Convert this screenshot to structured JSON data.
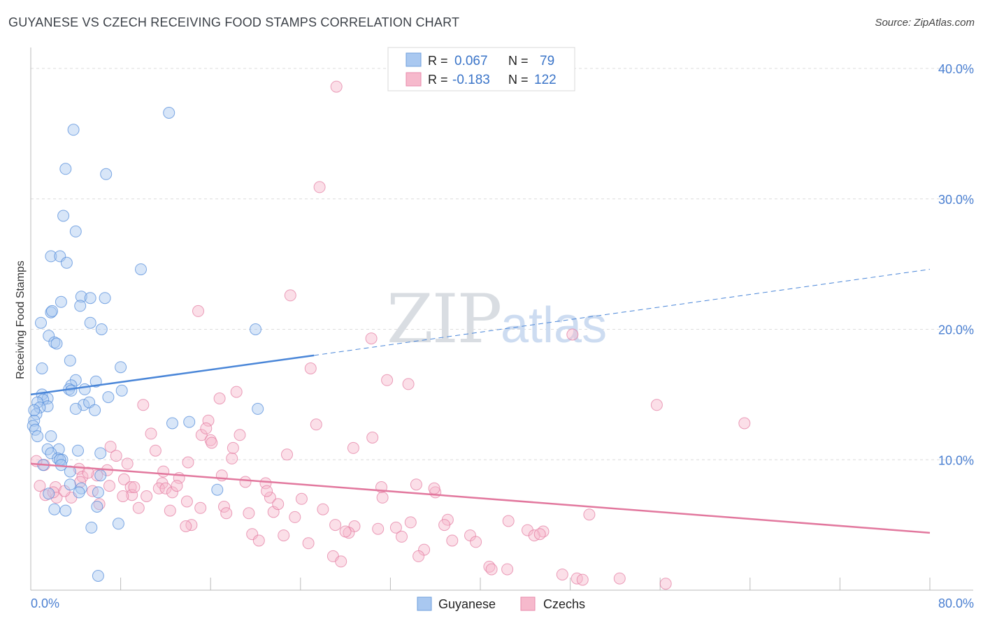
{
  "header": {
    "title": "GUYANESE VS CZECH RECEIVING FOOD STAMPS CORRELATION CHART",
    "source": "Source: ZipAtlas.com"
  },
  "watermark": {
    "zip": "ZIP",
    "atlas": "atlas"
  },
  "legend_box": {
    "rows": [
      {
        "r_label": "R =",
        "r_value": "0.067",
        "n_label": "N =",
        "n_value": "79",
        "color": "#a9c8f0"
      },
      {
        "r_label": "R =",
        "r_value": "-0.183",
        "n_label": "N =",
        "n_value": "122",
        "color": "#f6b9cc"
      }
    ]
  },
  "bottom_legend": {
    "items": [
      {
        "label": "Guyanese",
        "color": "#a9c8f0"
      },
      {
        "label": "Czechs",
        "color": "#f6b9cc"
      }
    ]
  },
  "chart_data": {
    "type": "scatter",
    "title": "GUYANESE VS CZECH RECEIVING FOOD STAMPS CORRELATION CHART",
    "xlabel": "",
    "ylabel": "Receiving Food Stamps",
    "xlim": [
      0,
      80
    ],
    "ylim": [
      0,
      40
    ],
    "x_tick_labels": [
      "0.0%",
      "80.0%"
    ],
    "y_ticks": [
      10,
      20,
      30,
      40
    ],
    "y_tick_labels": [
      "10.0%",
      "20.0%",
      "30.0%",
      "40.0%"
    ],
    "grid": true,
    "legend_position": "bottom",
    "series": [
      {
        "name": "Guyanese",
        "color": "#4a86d8",
        "fill": "#a9c8f0",
        "trend": {
          "x_start": 0,
          "y_start": 15.0,
          "x_solid_end": 25.2,
          "y_solid_end": 18.0,
          "x_end": 80,
          "y_end": 24.6
        },
        "points": [
          [
            12.3,
            36.6
          ],
          [
            3.8,
            35.3
          ],
          [
            3.1,
            32.3
          ],
          [
            6.7,
            31.9
          ],
          [
            2.9,
            28.7
          ],
          [
            4.0,
            27.5
          ],
          [
            1.8,
            25.6
          ],
          [
            2.6,
            25.6
          ],
          [
            3.2,
            25.1
          ],
          [
            9.8,
            24.6
          ],
          [
            4.5,
            22.5
          ],
          [
            5.3,
            22.4
          ],
          [
            6.6,
            22.4
          ],
          [
            2.7,
            22.1
          ],
          [
            4.4,
            21.8
          ],
          [
            1.8,
            21.3
          ],
          [
            1.9,
            21.4
          ],
          [
            0.9,
            20.5
          ],
          [
            5.3,
            20.5
          ],
          [
            6.3,
            20.0
          ],
          [
            20.0,
            20.0
          ],
          [
            1.6,
            19.5
          ],
          [
            2.1,
            19.0
          ],
          [
            2.3,
            18.9
          ],
          [
            3.5,
            17.6
          ],
          [
            1.0,
            17.0
          ],
          [
            8.0,
            17.1
          ],
          [
            4.0,
            16.1
          ],
          [
            5.8,
            16.0
          ],
          [
            3.6,
            15.7
          ],
          [
            3.4,
            15.4
          ],
          [
            3.6,
            15.3
          ],
          [
            4.8,
            15.4
          ],
          [
            8.1,
            15.3
          ],
          [
            1.0,
            15.0
          ],
          [
            1.5,
            14.7
          ],
          [
            1.1,
            14.6
          ],
          [
            6.9,
            14.8
          ],
          [
            0.6,
            14.4
          ],
          [
            4.7,
            14.2
          ],
          [
            5.2,
            14.4
          ],
          [
            1.5,
            14.1
          ],
          [
            0.8,
            14.0
          ],
          [
            4.0,
            13.9
          ],
          [
            5.7,
            13.8
          ],
          [
            20.2,
            13.9
          ],
          [
            0.5,
            13.5
          ],
          [
            0.3,
            13.0
          ],
          [
            12.6,
            12.8
          ],
          [
            14.1,
            12.9
          ],
          [
            0.2,
            12.6
          ],
          [
            0.4,
            12.3
          ],
          [
            0.6,
            11.8
          ],
          [
            1.8,
            11.8
          ],
          [
            1.5,
            10.8
          ],
          [
            2.5,
            10.8
          ],
          [
            4.2,
            10.7
          ],
          [
            1.8,
            10.5
          ],
          [
            6.2,
            10.5
          ],
          [
            2.4,
            10.1
          ],
          [
            2.8,
            10.0
          ],
          [
            2.6,
            10.0
          ],
          [
            1.1,
            9.6
          ],
          [
            2.7,
            9.6
          ],
          [
            3.5,
            9.1
          ],
          [
            6.2,
            8.8
          ],
          [
            3.5,
            8.1
          ],
          [
            4.5,
            7.8
          ],
          [
            16.6,
            7.7
          ],
          [
            1.6,
            7.4
          ],
          [
            4.3,
            7.5
          ],
          [
            6.0,
            7.5
          ],
          [
            5.9,
            6.4
          ],
          [
            2.1,
            6.2
          ],
          [
            3.1,
            6.1
          ],
          [
            7.8,
            5.1
          ],
          [
            5.4,
            4.8
          ],
          [
            6.0,
            1.1
          ],
          [
            0.3,
            13.8
          ]
        ]
      },
      {
        "name": "Czechs",
        "color": "#e2789e",
        "fill": "#f6b9cc",
        "trend": {
          "x_start": 0,
          "y_start": 9.7,
          "x_end": 80,
          "y_end": 4.4
        },
        "points": [
          [
            27.2,
            38.6
          ],
          [
            25.7,
            30.9
          ],
          [
            23.1,
            22.6
          ],
          [
            14.9,
            21.4
          ],
          [
            48.2,
            19.6
          ],
          [
            30.3,
            19.3
          ],
          [
            24.9,
            17.0
          ],
          [
            31.7,
            16.1
          ],
          [
            33.6,
            15.8
          ],
          [
            18.3,
            15.2
          ],
          [
            16.8,
            14.7
          ],
          [
            10.0,
            14.2
          ],
          [
            55.7,
            14.2
          ],
          [
            15.8,
            13.0
          ],
          [
            63.5,
            12.8
          ],
          [
            25.4,
            12.7
          ],
          [
            10.7,
            12.0
          ],
          [
            15.2,
            11.9
          ],
          [
            18.6,
            11.9
          ],
          [
            16.0,
            11.5
          ],
          [
            30.4,
            11.7
          ],
          [
            16.1,
            11.3
          ],
          [
            28.7,
            10.9
          ],
          [
            7.1,
            11.0
          ],
          [
            11.1,
            10.7
          ],
          [
            7.6,
            10.3
          ],
          [
            22.8,
            10.4
          ],
          [
            17.9,
            10.1
          ],
          [
            8.6,
            9.7
          ],
          [
            14.0,
            9.8
          ],
          [
            4.3,
            9.3
          ],
          [
            5.9,
            8.8
          ],
          [
            17.0,
            8.8
          ],
          [
            8.3,
            8.5
          ],
          [
            4.6,
            8.7
          ],
          [
            13.2,
            8.6
          ],
          [
            11.7,
            8.2
          ],
          [
            19.1,
            8.3
          ],
          [
            20.9,
            8.2
          ],
          [
            34.3,
            8.1
          ],
          [
            0.8,
            8.0
          ],
          [
            2.2,
            7.9
          ],
          [
            31.2,
            7.9
          ],
          [
            8.9,
            7.9
          ],
          [
            7.0,
            8.0
          ],
          [
            11.4,
            7.8
          ],
          [
            12.0,
            7.8
          ],
          [
            5.5,
            7.6
          ],
          [
            36.0,
            7.5
          ],
          [
            12.6,
            7.5
          ],
          [
            3.6,
            7.1
          ],
          [
            1.3,
            7.3
          ],
          [
            2.3,
            7.1
          ],
          [
            9.0,
            7.3
          ],
          [
            10.3,
            7.2
          ],
          [
            8.2,
            7.2
          ],
          [
            31.3,
            7.1
          ],
          [
            21.3,
            7.1
          ],
          [
            24.1,
            7.0
          ],
          [
            13.9,
            6.8
          ],
          [
            6.1,
            6.6
          ],
          [
            9.6,
            6.3
          ],
          [
            17.2,
            6.4
          ],
          [
            15.1,
            6.3
          ],
          [
            12.4,
            6.1
          ],
          [
            21.6,
            6.0
          ],
          [
            17.4,
            5.9
          ],
          [
            19.4,
            5.9
          ],
          [
            23.5,
            5.6
          ],
          [
            49.7,
            5.8
          ],
          [
            37.1,
            5.4
          ],
          [
            42.5,
            5.3
          ],
          [
            14.3,
            5.0
          ],
          [
            13.8,
            4.9
          ],
          [
            27.1,
            5.0
          ],
          [
            33.8,
            5.2
          ],
          [
            28.8,
            4.9
          ],
          [
            30.9,
            4.7
          ],
          [
            28.3,
            4.4
          ],
          [
            32.5,
            4.8
          ],
          [
            44.2,
            4.6
          ],
          [
            45.6,
            4.5
          ],
          [
            44.8,
            4.2
          ],
          [
            39.1,
            4.2
          ],
          [
            19.7,
            4.3
          ],
          [
            22.5,
            4.2
          ],
          [
            33.0,
            4.1
          ],
          [
            45.3,
            4.3
          ],
          [
            37.5,
            3.8
          ],
          [
            39.6,
            3.7
          ],
          [
            20.3,
            3.8
          ],
          [
            24.7,
            3.6
          ],
          [
            35.0,
            3.1
          ],
          [
            26.9,
            2.6
          ],
          [
            34.5,
            2.6
          ],
          [
            27.6,
            2.2
          ],
          [
            40.8,
            1.8
          ],
          [
            41.0,
            1.6
          ],
          [
            42.4,
            1.6
          ],
          [
            47.3,
            1.2
          ],
          [
            48.6,
            0.9
          ],
          [
            49.1,
            0.8
          ],
          [
            52.4,
            0.9
          ],
          [
            56.5,
            0.5
          ],
          [
            4.4,
            8.3
          ],
          [
            3.0,
            7.6
          ],
          [
            6.8,
            9.2
          ],
          [
            9.2,
            7.9
          ],
          [
            1.2,
            9.6
          ],
          [
            2.0,
            7.5
          ],
          [
            13.0,
            8.0
          ],
          [
            18.0,
            10.9
          ],
          [
            15.6,
            12.4
          ],
          [
            11.8,
            9.1
          ],
          [
            21.0,
            7.6
          ],
          [
            26.0,
            6.2
          ],
          [
            35.9,
            7.8
          ],
          [
            22.0,
            6.6
          ],
          [
            5.1,
            9.0
          ],
          [
            0.5,
            9.9
          ],
          [
            28.0,
            4.5
          ],
          [
            36.8,
            5.0
          ]
        ]
      }
    ]
  }
}
